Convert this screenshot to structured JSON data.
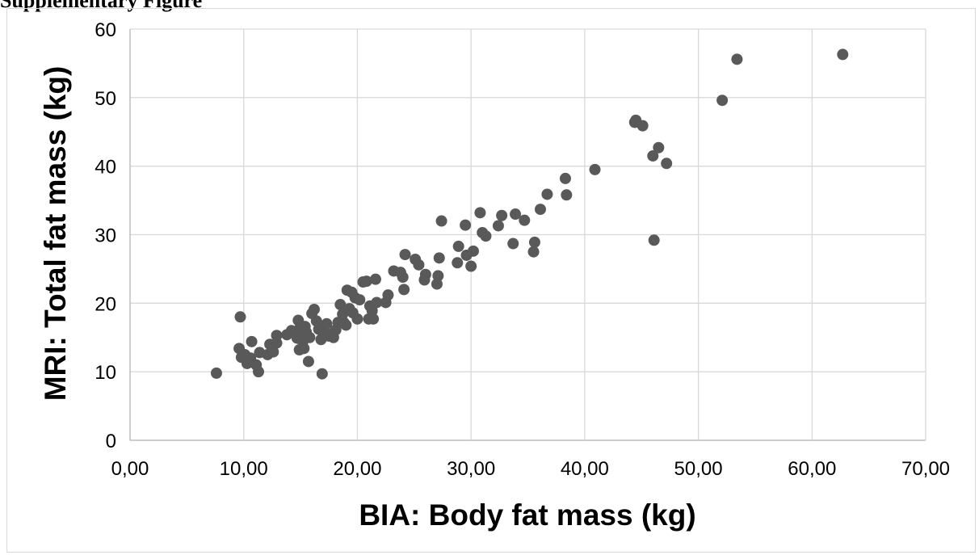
{
  "caption": "Supplementary Figure",
  "chart_data": {
    "type": "scatter",
    "xlabel": "BIA: Body fat mass (kg)",
    "ylabel": "MRI: Total fat mass (kg)",
    "xlim": [
      0,
      70
    ],
    "ylim": [
      0,
      60
    ],
    "x_ticks": [
      "0,00",
      "10,00",
      "20,00",
      "30,00",
      "40,00",
      "50,00",
      "60,00",
      "70,00"
    ],
    "y_ticks": [
      "0",
      "10",
      "20",
      "30",
      "40",
      "50",
      "60"
    ],
    "grid": true,
    "marker_color": "#595959",
    "points": [
      [
        7.6,
        9.8
      ],
      [
        9.6,
        13.4
      ],
      [
        9.7,
        18.0
      ],
      [
        9.8,
        12.1
      ],
      [
        10.1,
        12.5
      ],
      [
        10.3,
        11.2
      ],
      [
        10.6,
        12.0
      ],
      [
        10.7,
        14.4
      ],
      [
        11.1,
        11.0
      ],
      [
        11.3,
        10.0
      ],
      [
        11.4,
        12.8
      ],
      [
        12.1,
        12.5
      ],
      [
        12.3,
        14.0
      ],
      [
        12.6,
        12.9
      ],
      [
        12.9,
        15.3
      ],
      [
        12.9,
        14.2
      ],
      [
        13.8,
        15.4
      ],
      [
        14.2,
        16.0
      ],
      [
        14.5,
        15.7
      ],
      [
        14.7,
        14.9
      ],
      [
        14.8,
        17.5
      ],
      [
        14.9,
        13.2
      ],
      [
        15.0,
        16.7
      ],
      [
        15.1,
        15.2
      ],
      [
        15.2,
        14.4
      ],
      [
        15.3,
        13.4
      ],
      [
        15.4,
        16.6
      ],
      [
        15.5,
        15.8
      ],
      [
        15.7,
        11.5
      ],
      [
        15.8,
        15.0
      ],
      [
        16.0,
        18.5
      ],
      [
        16.2,
        19.1
      ],
      [
        16.4,
        17.4
      ],
      [
        16.6,
        16.2
      ],
      [
        16.8,
        14.7
      ],
      [
        16.9,
        9.7
      ],
      [
        17.1,
        15.6
      ],
      [
        17.3,
        17.0
      ],
      [
        17.5,
        15.2
      ],
      [
        17.7,
        15.5
      ],
      [
        17.9,
        15.0
      ],
      [
        18.1,
        16.1
      ],
      [
        18.3,
        17.2
      ],
      [
        18.5,
        19.8
      ],
      [
        18.7,
        18.4
      ],
      [
        18.8,
        17.2
      ],
      [
        19.0,
        16.8
      ],
      [
        19.1,
        21.9
      ],
      [
        19.3,
        19.2
      ],
      [
        19.5,
        21.6
      ],
      [
        19.6,
        18.6
      ],
      [
        19.8,
        20.8
      ],
      [
        20.0,
        17.7
      ],
      [
        20.2,
        20.5
      ],
      [
        20.5,
        23.1
      ],
      [
        20.8,
        23.2
      ],
      [
        21.0,
        17.7
      ],
      [
        21.1,
        19.6
      ],
      [
        21.3,
        18.9
      ],
      [
        21.4,
        17.7
      ],
      [
        21.6,
        23.5
      ],
      [
        21.7,
        20.1
      ],
      [
        22.5,
        20.1
      ],
      [
        22.7,
        21.2
      ],
      [
        23.2,
        24.7
      ],
      [
        23.8,
        24.5
      ],
      [
        24.0,
        23.8
      ],
      [
        24.1,
        22.0
      ],
      [
        24.2,
        27.1
      ],
      [
        25.1,
        26.4
      ],
      [
        25.4,
        25.6
      ],
      [
        25.9,
        23.4
      ],
      [
        26.0,
        24.2
      ],
      [
        27.0,
        22.8
      ],
      [
        27.1,
        24.0
      ],
      [
        27.2,
        26.6
      ],
      [
        27.4,
        32.0
      ],
      [
        28.8,
        25.9
      ],
      [
        28.9,
        28.3
      ],
      [
        29.5,
        31.4
      ],
      [
        29.6,
        27.0
      ],
      [
        30.0,
        25.4
      ],
      [
        30.2,
        27.6
      ],
      [
        30.8,
        33.2
      ],
      [
        31.0,
        30.3
      ],
      [
        31.3,
        29.8
      ],
      [
        32.4,
        31.3
      ],
      [
        32.7,
        32.8
      ],
      [
        33.7,
        28.7
      ],
      [
        33.9,
        33.0
      ],
      [
        34.7,
        32.1
      ],
      [
        35.5,
        27.5
      ],
      [
        35.6,
        28.9
      ],
      [
        36.1,
        33.7
      ],
      [
        36.7,
        35.9
      ],
      [
        38.3,
        38.2
      ],
      [
        38.4,
        35.8
      ],
      [
        40.9,
        39.5
      ],
      [
        44.4,
        46.4
      ],
      [
        44.5,
        46.7
      ],
      [
        45.1,
        45.9
      ],
      [
        46.0,
        41.5
      ],
      [
        46.1,
        29.2
      ],
      [
        46.5,
        42.7
      ],
      [
        47.2,
        40.4
      ],
      [
        52.1,
        49.6
      ],
      [
        53.4,
        55.6
      ],
      [
        62.7,
        56.3
      ]
    ]
  }
}
